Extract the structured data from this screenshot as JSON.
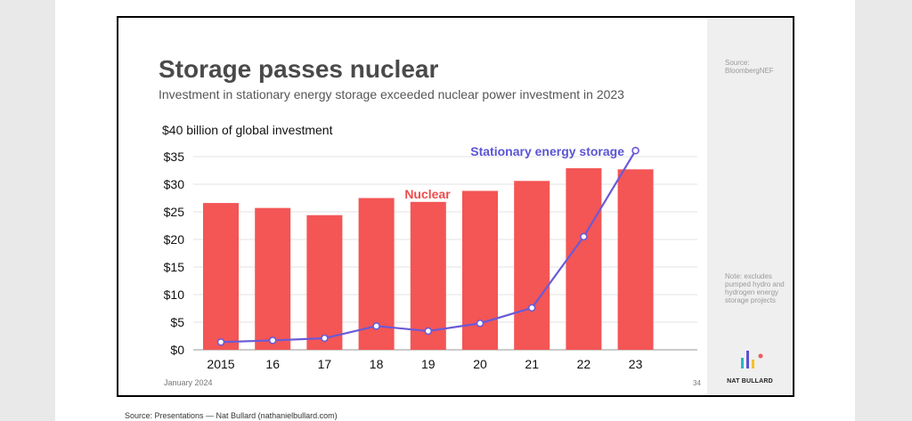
{
  "slide": {
    "title": "Storage passes nuclear",
    "subtitle": "Investment in stationary energy storage exceeded nuclear power investment in 2023",
    "y_caption": "$40 billion of global investment",
    "footer_date": "January 2024",
    "page_number": "34",
    "source_note": "Source: BloombergNEF",
    "side_note": "Note: excludes pumped hydro and hydrogen energy storage projects",
    "brand_name": "NAT BULLARD"
  },
  "page_caption": "Source: Presentations — Nat Bullard (nathanielbullard.com)",
  "colors": {
    "nuclear": "#f45555",
    "storage": "#6a5ad6",
    "nuclear_label": "#ef4b4b",
    "storage_label": "#5b55d3"
  },
  "chart_data": {
    "type": "bar",
    "title": "Storage passes nuclear",
    "subtitle": "Investment in stationary energy storage exceeded nuclear power investment in 2023",
    "ylabel": "$40 billion of global investment",
    "categories": [
      "2015",
      "16",
      "17",
      "18",
      "19",
      "20",
      "21",
      "22",
      "23"
    ],
    "ylim": [
      0,
      40
    ],
    "yticks": [
      0,
      5,
      10,
      15,
      20,
      25,
      30,
      35
    ],
    "ytick_labels": [
      "$0",
      "$5",
      "$10",
      "$15",
      "$20",
      "$25",
      "$30",
      "$35"
    ],
    "grid": true,
    "series": [
      {
        "name": "Nuclear",
        "type": "bar",
        "values": [
          26.6,
          25.7,
          24.4,
          27.5,
          26.8,
          28.8,
          30.6,
          32.9,
          32.7
        ]
      },
      {
        "name": "Stationary energy storage",
        "type": "line",
        "values": [
          1.4,
          1.7,
          2.1,
          4.3,
          3.4,
          4.8,
          7.6,
          20.5,
          36.1
        ]
      }
    ]
  }
}
